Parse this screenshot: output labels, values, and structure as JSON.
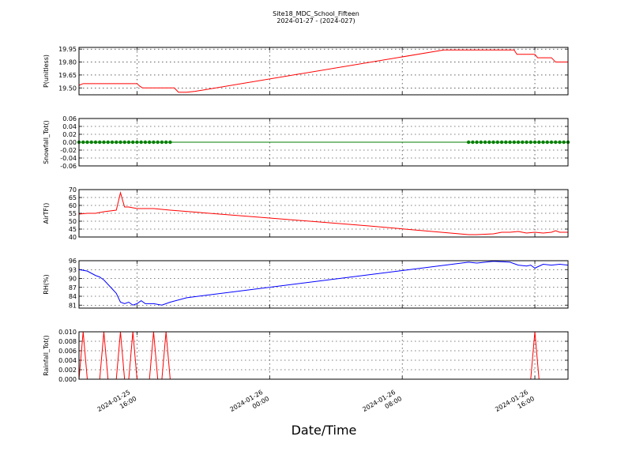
{
  "figure": {
    "title_line1": "Site18_MDC_School_Fifteen",
    "title_line2": "2024-01-27 - (2024-027)",
    "xlabel": "Date/Time"
  },
  "chart_data": [
    {
      "type": "line",
      "ylabel": "P(unitless)",
      "ylim": [
        19.42,
        19.97
      ],
      "yticks": [
        "19.95",
        "19.80",
        "19.65",
        "19.50"
      ],
      "ytick_values": [
        19.95,
        19.8,
        19.65,
        19.5
      ],
      "grid": true,
      "series": [
        {
          "color": "#ff0000",
          "marker": "none",
          "x": [
            "2024-01-25 12:30",
            "2024-01-25 12:45",
            "2024-01-25 16:00",
            "2024-01-25 16:10",
            "2024-01-25 16:20",
            "2024-01-25 18:15",
            "2024-01-25 18:30",
            "2024-01-25 19:00",
            "2024-01-25 19:30",
            "2024-01-26 10:30",
            "2024-01-26 12:00",
            "2024-01-26 12:30",
            "2024-01-26 14:45",
            "2024-01-26 14:55",
            "2024-01-26 15:30",
            "2024-01-26 16:00",
            "2024-01-26 16:10",
            "2024-01-26 17:00",
            "2024-01-26 17:15",
            "2024-01-26 18:00"
          ],
          "y": [
            19.53,
            19.55,
            19.55,
            19.52,
            19.5,
            19.5,
            19.45,
            19.45,
            19.46,
            19.94,
            19.94,
            19.94,
            19.94,
            19.89,
            19.89,
            19.89,
            19.85,
            19.85,
            19.8,
            19.8
          ]
        }
      ]
    },
    {
      "type": "line",
      "ylabel": "Snowfall_Tot()",
      "ylim": [
        -0.06,
        0.06
      ],
      "yticks": [
        "0.06",
        "0.04",
        "0.02",
        "0.00",
        "-0.02",
        "-0.04",
        "-0.06"
      ],
      "ytick_values": [
        0.06,
        0.04,
        0.02,
        0.0,
        -0.02,
        -0.04,
        -0.06
      ],
      "grid": true,
      "series": [
        {
          "color": "#008000",
          "marker": "dots",
          "x": [
            "2024-01-25 12:30",
            "2024-01-26 18:00"
          ],
          "y": [
            0.0,
            0.0
          ],
          "marker_ranges": [
            [
              "2024-01-25 12:30",
              "2024-01-25 18:00"
            ],
            [
              "2024-01-26 12:00",
              "2024-01-26 18:00"
            ]
          ],
          "marker_interval_min": 15
        }
      ]
    },
    {
      "type": "line",
      "ylabel": "AirTF()",
      "ylim": [
        40,
        70
      ],
      "yticks": [
        "70",
        "65",
        "60",
        "55",
        "50",
        "45",
        "40"
      ],
      "ytick_values": [
        70,
        65,
        60,
        55,
        50,
        45,
        40
      ],
      "grid": true,
      "series": [
        {
          "color": "#ff0000",
          "marker": "none",
          "x": [
            "2024-01-25 12:30",
            "2024-01-25 13:00",
            "2024-01-25 13:30",
            "2024-01-25 14:00",
            "2024-01-25 14:45",
            "2024-01-25 15:00",
            "2024-01-25 15:15",
            "2024-01-25 15:30",
            "2024-01-25 16:00",
            "2024-01-25 17:00",
            "2024-01-25 18:00",
            "2024-01-26 00:00",
            "2024-01-26 06:00",
            "2024-01-26 12:00",
            "2024-01-26 12:30",
            "2024-01-26 13:30",
            "2024-01-26 14:00",
            "2024-01-26 14:30",
            "2024-01-26 15:00",
            "2024-01-26 15:30",
            "2024-01-26 16:00",
            "2024-01-26 16:30",
            "2024-01-26 17:00",
            "2024-01-26 17:15",
            "2024-01-26 17:30",
            "2024-01-26 18:00"
          ],
          "y": [
            54.5,
            55,
            55,
            56,
            57,
            68,
            59,
            59,
            58,
            58,
            57,
            52,
            47,
            41.5,
            41.5,
            42,
            43,
            43,
            43.5,
            42.5,
            43,
            42.5,
            43,
            44,
            43,
            43
          ]
        }
      ]
    },
    {
      "type": "line",
      "ylabel": "RH(%)",
      "ylim": [
        80,
        96
      ],
      "yticks": [
        "96",
        "93",
        "90",
        "87",
        "84",
        "81"
      ],
      "ytick_values": [
        96,
        93,
        90,
        87,
        84,
        81
      ],
      "grid": true,
      "series": [
        {
          "color": "#0000ff",
          "marker": "none",
          "x": [
            "2024-01-25 12:30",
            "2024-01-25 13:00",
            "2024-01-25 13:30",
            "2024-01-25 13:45",
            "2024-01-25 14:00",
            "2024-01-25 14:30",
            "2024-01-25 14:45",
            "2024-01-25 15:00",
            "2024-01-25 15:15",
            "2024-01-25 15:30",
            "2024-01-25 15:45",
            "2024-01-25 16:00",
            "2024-01-25 16:15",
            "2024-01-25 16:30",
            "2024-01-25 16:45",
            "2024-01-25 17:00",
            "2024-01-25 17:30",
            "2024-01-25 18:00",
            "2024-01-25 19:00",
            "2024-01-26 12:00",
            "2024-01-26 12:30",
            "2024-01-26 13:00",
            "2024-01-26 13:30",
            "2024-01-26 14:30",
            "2024-01-26 15:00",
            "2024-01-26 15:30",
            "2024-01-26 15:45",
            "2024-01-26 16:00",
            "2024-01-26 16:30",
            "2024-01-26 17:00",
            "2024-01-26 17:30",
            "2024-01-26 18:00"
          ],
          "y": [
            93,
            92.5,
            91,
            90.5,
            89.5,
            86.5,
            85,
            82,
            81.5,
            82,
            81,
            81.5,
            82.5,
            81.5,
            81.5,
            81.5,
            81,
            82,
            83.5,
            95.5,
            95.2,
            95.5,
            95.8,
            95.5,
            94.5,
            94.2,
            94.5,
            93.5,
            94.8,
            94.5,
            94.8,
            94.5
          ]
        }
      ]
    },
    {
      "type": "line",
      "ylabel": "Rainfall_Tot()",
      "ylim": [
        0,
        0.01
      ],
      "yticks": [
        "0.010",
        "0.008",
        "0.006",
        "0.004",
        "0.002",
        "0.000"
      ],
      "ytick_values": [
        0.01,
        0.008,
        0.006,
        0.004,
        0.002,
        0.0
      ],
      "grid": true,
      "series": [
        {
          "color": "#ff0000",
          "marker": "none",
          "x": [
            "2024-01-25 12:30",
            "2024-01-25 12:45",
            "2024-01-25 13:00",
            "2024-01-25 13:45",
            "2024-01-25 14:00",
            "2024-01-25 14:15",
            "2024-01-25 14:45",
            "2024-01-25 15:00",
            "2024-01-25 15:15",
            "2024-01-25 15:30",
            "2024-01-25 15:45",
            "2024-01-25 16:00",
            "2024-01-25 16:15",
            "2024-01-25 16:45",
            "2024-01-25 17:00",
            "2024-01-25 17:15",
            "2024-01-25 17:30",
            "2024-01-25 17:45",
            "2024-01-25 18:00",
            "2024-01-26 15:45",
            "2024-01-26 16:00",
            "2024-01-26 16:15",
            "2024-01-26 18:00"
          ],
          "y": [
            0,
            0.01,
            0,
            0,
            0.01,
            0,
            0,
            0.01,
            0,
            0,
            0.01,
            0,
            0,
            0,
            0.01,
            0,
            0,
            0.01,
            0,
            0,
            0.01,
            0,
            0
          ]
        }
      ]
    }
  ],
  "x_axis": {
    "range": [
      "2024-01-25 12:30",
      "2024-01-26 18:00"
    ],
    "ticks": [
      {
        "at": "2024-01-25 16:00",
        "line1": "2024-01-25",
        "line2": "16:00"
      },
      {
        "at": "2024-01-26 00:00",
        "line1": "2024-01-26",
        "line2": "00:00"
      },
      {
        "at": "2024-01-26 08:00",
        "line1": "2024-01-26",
        "line2": "08:00"
      },
      {
        "at": "2024-01-26 16:00",
        "line1": "2024-01-26",
        "line2": "16:00"
      }
    ]
  }
}
